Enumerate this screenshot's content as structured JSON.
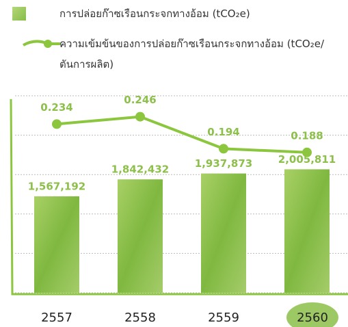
{
  "chart_data": {
    "type": "bar+line",
    "categories": [
      "2557",
      "2558",
      "2559",
      "2560"
    ],
    "series": [
      {
        "name": "การปล่อยก๊าซเรือนกระจกทางอ้อม (tCO₂e)",
        "type": "bar",
        "color": "#8cc04a",
        "values": [
          1567192,
          1842432,
          1937873,
          2005811
        ],
        "value_labels": [
          "1,567,192",
          "1,842,432",
          "1,937,873",
          "2,005,811"
        ]
      },
      {
        "name": "ความเข้มข้นของการปล่อยก๊าซเรือนกระจกทางอ้อม (tCO₂e/ตันการผลิต)",
        "type": "line",
        "axis": "y2",
        "color": "#8cc63f",
        "values": [
          0.234,
          0.246,
          0.194,
          0.188
        ]
      }
    ],
    "ylim": [
      0,
      3200000
    ],
    "yticks": [
      0,
      640000,
      1280000,
      1920000,
      2560000,
      3200000
    ],
    "y2lim": [
      -0.04,
      0.28
    ],
    "grid": true
  }
}
